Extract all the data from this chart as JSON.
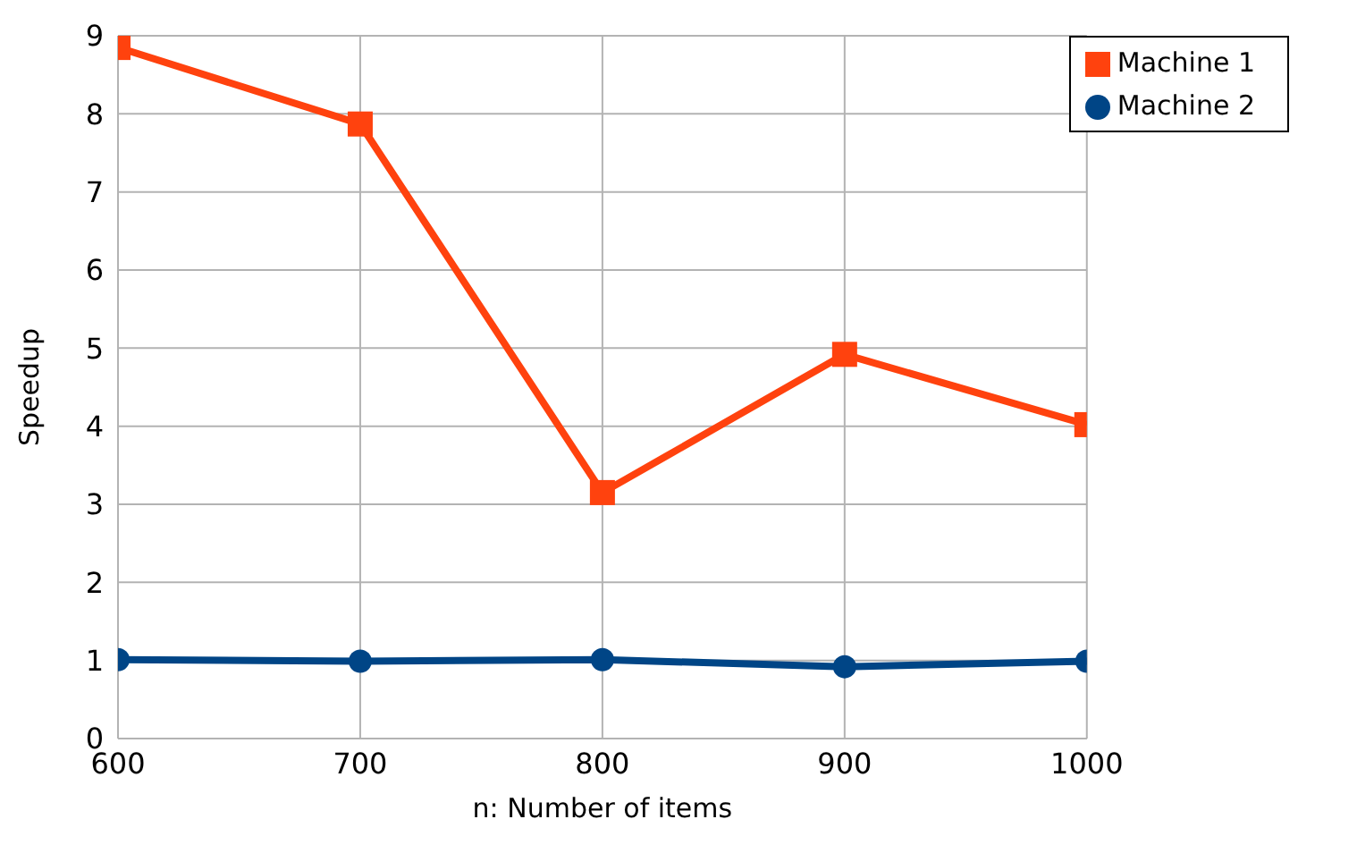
{
  "chart_data": {
    "type": "line",
    "xlabel": "n: Number of items",
    "ylabel": "Speedup",
    "x": [
      600,
      700,
      800,
      900,
      1000
    ],
    "series": [
      {
        "name": "Machine 1",
        "color": "#ff420e",
        "values": [
          8.85,
          7.87,
          3.15,
          4.92,
          4.02
        ],
        "marker": "square"
      },
      {
        "name": "Machine 2",
        "color": "#004586",
        "values": [
          1.01,
          0.99,
          1.01,
          0.92,
          0.99
        ],
        "marker": "circle"
      }
    ],
    "xlim": [
      600,
      1000
    ],
    "xticks": [
      600,
      700,
      800,
      900,
      1000
    ],
    "ylim": [
      0,
      9
    ],
    "yticks": [
      0,
      1,
      2,
      3,
      4,
      5,
      6,
      7,
      8,
      9
    ],
    "grid": true,
    "legend": "top right",
    "line_style": "solid"
  }
}
